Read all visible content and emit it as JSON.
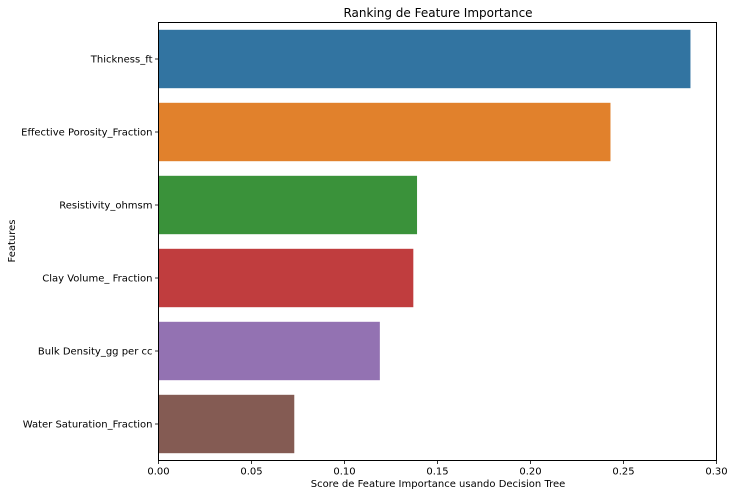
{
  "chart_data": {
    "type": "bar",
    "orientation": "horizontal",
    "title": "Ranking de Feature Importance",
    "xlabel": "Score de Feature Importance usando Decision Tree",
    "ylabel": "Features",
    "xlim": [
      0,
      0.3
    ],
    "x_ticks": [
      "0.00",
      "0.05",
      "0.10",
      "0.15",
      "0.20",
      "0.25",
      "0.30"
    ],
    "x_tick_values": [
      0,
      0.05,
      0.1,
      0.15,
      0.2,
      0.25,
      0.3
    ],
    "grid": false,
    "categories": [
      "Thickness_ft",
      "Effective Porosity_Fraction",
      "Resistivity_ohmsm",
      "Clay Volume_ Fraction",
      "Bulk Density_gg per cc",
      "Water Saturation_Fraction"
    ],
    "values": [
      0.286,
      0.243,
      0.139,
      0.137,
      0.119,
      0.073
    ],
    "colors": [
      "#3274a1",
      "#e1812c",
      "#3a923a",
      "#c03d3e",
      "#9372b2",
      "#845b53"
    ]
  }
}
